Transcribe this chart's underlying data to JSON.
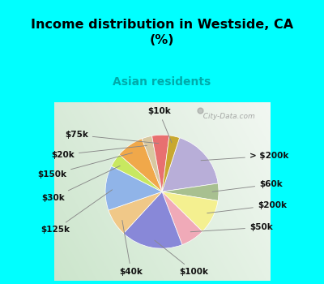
{
  "title": "Income distribution in Westside, CA\n(%)",
  "subtitle": "Asian residents",
  "title_color": "#000000",
  "subtitle_color": "#00aaaa",
  "bg_cyan": "#00ffff",
  "watermark": "  City-Data.com",
  "labels": [
    "> $200k",
    "$60k",
    "$200k",
    "$50k",
    "$100k",
    "$40k",
    "$125k",
    "$30k",
    "$150k",
    "$20k",
    "$75k",
    "$10k"
  ],
  "values": [
    18,
    5,
    10,
    7,
    18,
    8,
    13,
    4,
    8,
    3,
    5,
    3
  ],
  "colors": [
    "#b8aed8",
    "#a8c090",
    "#f4f090",
    "#f0aab8",
    "#8888d8",
    "#f0c888",
    "#90b4e8",
    "#c8e860",
    "#f0a84a",
    "#d8c8a0",
    "#e87070",
    "#c8a830"
  ],
  "startangle": 72,
  "label_fontsize": 7.5
}
